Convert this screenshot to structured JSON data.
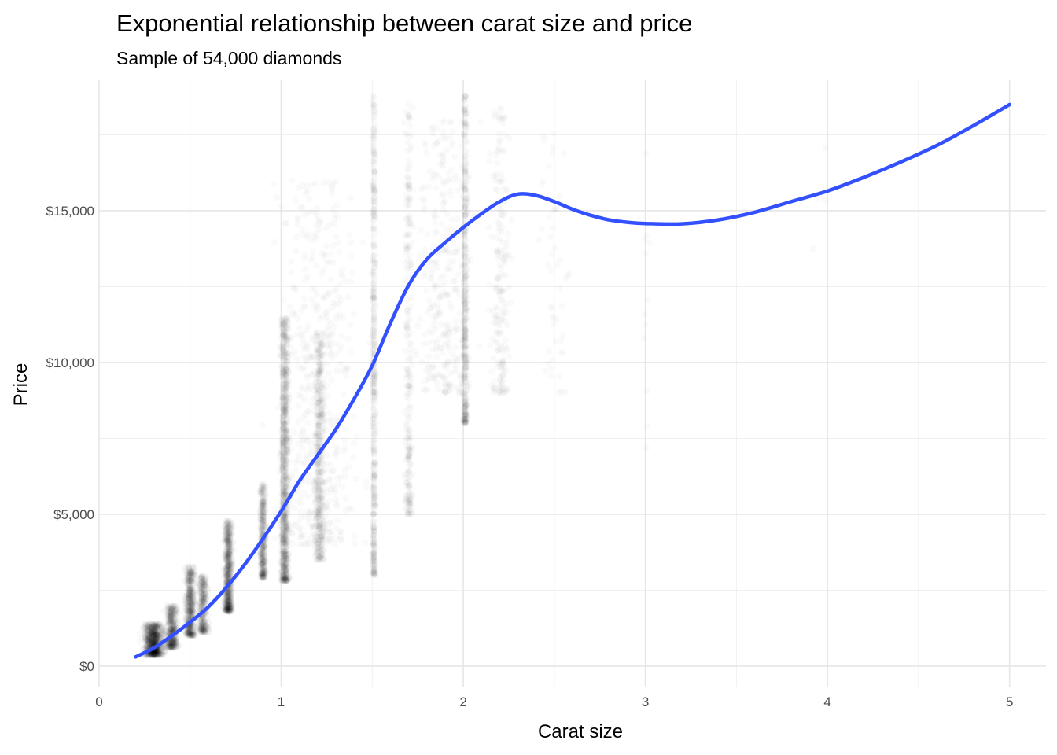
{
  "chart_data": {
    "type": "scatter",
    "title": "Exponential relationship between carat size and price",
    "subtitle": "Sample of 54,000 diamonds",
    "xlabel": "Carat size",
    "ylabel": "Price",
    "xlim": [
      0,
      5.2
    ],
    "ylim": [
      -700,
      19300
    ],
    "x_ticks": [
      0,
      1,
      2,
      3,
      4,
      5
    ],
    "x_tick_labels": [
      "0",
      "1",
      "2",
      "3",
      "4",
      "5"
    ],
    "y_ticks": [
      0,
      5000,
      10000,
      15000
    ],
    "y_tick_labels": [
      "$0",
      "$5,000",
      "$10,000",
      "$15,000"
    ],
    "grid": true,
    "legend": "none",
    "point_color": "#000000",
    "point_alpha": 0.02,
    "smooth_color": "#3350FF",
    "clusters": [
      {
        "x": 0.3,
        "spread": 0.1,
        "price_range": [
          350,
          1400
        ],
        "count": 900
      },
      {
        "x": 0.4,
        "spread": 0.06,
        "price_range": [
          600,
          2000
        ],
        "count": 450
      },
      {
        "x": 0.5,
        "spread": 0.05,
        "price_range": [
          1000,
          3300
        ],
        "count": 550
      },
      {
        "x": 0.57,
        "spread": 0.05,
        "price_range": [
          1100,
          3000
        ],
        "count": 350
      },
      {
        "x": 0.71,
        "spread": 0.04,
        "price_range": [
          1800,
          4800
        ],
        "count": 700
      },
      {
        "x": 0.9,
        "spread": 0.03,
        "price_range": [
          2900,
          6000
        ],
        "count": 400
      },
      {
        "x": 1.02,
        "spread": 0.04,
        "price_range": [
          2800,
          11500
        ],
        "count": 950
      },
      {
        "x": 1.21,
        "spread": 0.05,
        "price_range": [
          3500,
          11000
        ],
        "count": 450
      },
      {
        "x": 1.51,
        "spread": 0.02,
        "price_range": [
          3000,
          18800
        ],
        "count": 450
      },
      {
        "x": 1.7,
        "spread": 0.04,
        "price_range": [
          5000,
          18500
        ],
        "count": 250
      },
      {
        "x": 2.01,
        "spread": 0.02,
        "price_range": [
          8000,
          18800
        ],
        "count": 420
      },
      {
        "x": 2.2,
        "spread": 0.1,
        "price_range": [
          9000,
          18600
        ],
        "count": 200
      },
      {
        "x": 2.5,
        "spread": 0.15,
        "price_range": [
          9000,
          18400
        ],
        "count": 50
      },
      {
        "x": 3.0,
        "spread": 0.05,
        "price_range": [
          6500,
          18500
        ],
        "count": 12
      },
      {
        "x": 4.0,
        "spread": 0.15,
        "price_range": [
          13500,
          18000
        ],
        "count": 4
      },
      {
        "x": 1.2,
        "spread": 0.4,
        "price_range": [
          4000,
          16000
        ],
        "count": 500
      },
      {
        "x": 1.9,
        "spread": 0.3,
        "price_range": [
          9000,
          18000
        ],
        "count": 300
      }
    ],
    "smooth_line": {
      "x": [
        0.2,
        0.3,
        0.4,
        0.5,
        0.6,
        0.7,
        0.8,
        0.9,
        1.0,
        1.1,
        1.2,
        1.3,
        1.4,
        1.5,
        1.6,
        1.7,
        1.8,
        1.9,
        2.0,
        2.1,
        2.2,
        2.3,
        2.4,
        2.5,
        2.6,
        2.7,
        2.8,
        2.9,
        3.0,
        3.2,
        3.4,
        3.6,
        3.8,
        4.0,
        4.2,
        4.4,
        4.6,
        4.8,
        5.0
      ],
      "y": [
        300,
        600,
        1000,
        1450,
        1950,
        2600,
        3350,
        4200,
        5100,
        6100,
        6950,
        7800,
        8800,
        9900,
        11300,
        12550,
        13400,
        13950,
        14450,
        14900,
        15300,
        15550,
        15500,
        15300,
        15050,
        14850,
        14700,
        14620,
        14580,
        14570,
        14700,
        14950,
        15300,
        15650,
        16100,
        16600,
        17150,
        17800,
        18500
      ]
    }
  }
}
